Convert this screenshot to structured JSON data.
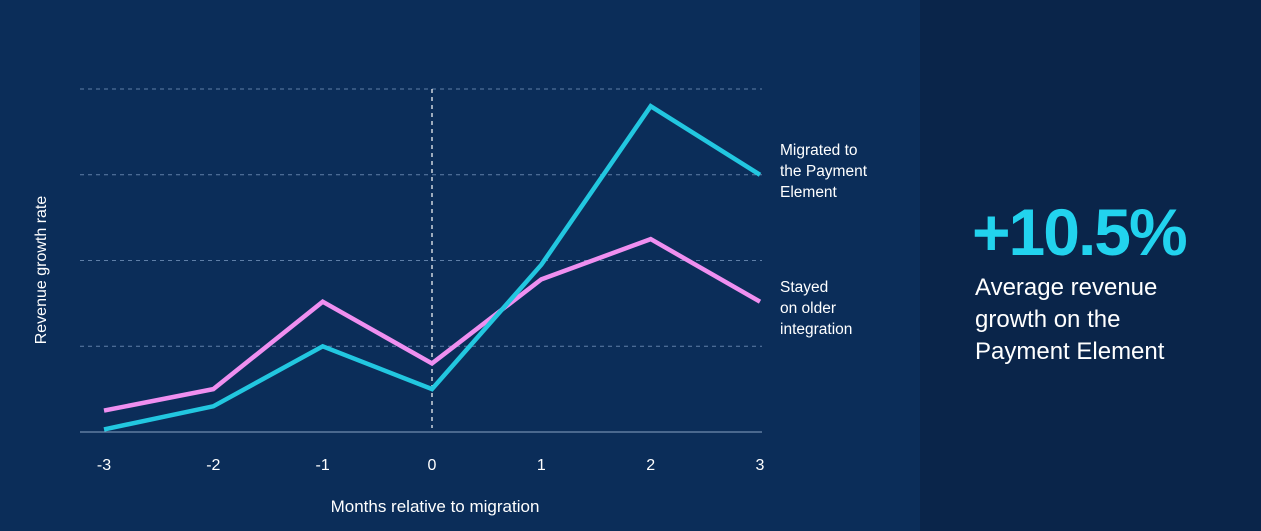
{
  "colors": {
    "background_chart": "#0b2d59",
    "background_stat": "#0a254a",
    "migrated": "#22c7e0",
    "stayed": "#ef8ff0",
    "stat_value": "#22d3ee",
    "grid": "#5f7fa8",
    "axis": "#8aa2c2",
    "text": "#ffffff"
  },
  "chart_data": {
    "type": "line",
    "x": [
      -3,
      -2,
      -1,
      0,
      1,
      2,
      3
    ],
    "xticks": [
      "-3",
      "-2",
      "-1",
      "0",
      "1",
      "2",
      "3"
    ],
    "xlabel": "Months relative to migration",
    "ylabel": "Revenue growth rate",
    "ylim": [
      0,
      4
    ],
    "y_tick_labels": false,
    "grid": "horizontal dashed",
    "reference_line_x": 0,
    "series": [
      {
        "name": "Migrated to the Payment Element",
        "label_lines": "Migrated to\nthe Payment\nElement",
        "color": "#22c7e0",
        "values": [
          0.03,
          0.3,
          1.0,
          0.5,
          1.95,
          3.8,
          3.0
        ]
      },
      {
        "name": "Stayed on older integration",
        "label_lines": "Stayed\non older\nintegration",
        "color": "#ef8ff0",
        "values": [
          0.25,
          0.5,
          1.52,
          0.8,
          1.78,
          2.25,
          1.52
        ]
      }
    ]
  },
  "stat": {
    "value": "+10.5%",
    "description": "Average revenue\ngrowth on the\nPayment Element"
  }
}
